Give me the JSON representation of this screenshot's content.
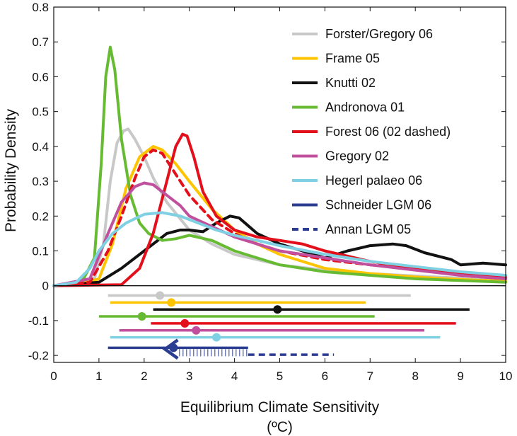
{
  "chart_data": {
    "type": "line",
    "title": "",
    "xlabel": "Equilibrium Climate Sensitivity",
    "xlabel_unit": "(ºC)",
    "ylabel": "Probability Density",
    "xlim": [
      0,
      10
    ],
    "ylim": [
      -0.22,
      0.8
    ],
    "xticks": [
      "0",
      "1",
      "2",
      "3",
      "4",
      "5",
      "6",
      "7",
      "8",
      "9",
      "10"
    ],
    "yticks": [
      "-0.2",
      "-0.1",
      "0",
      "0.1",
      "0.2",
      "0.3",
      "0.4",
      "0.5",
      "0.6",
      "0.7",
      "0.8"
    ],
    "grid": false,
    "legend_position": "top-right",
    "series": [
      {
        "name": "Forster/Gregory 06",
        "color": "#c8c8c8",
        "dash": false,
        "x": [
          0,
          0.5,
          0.9,
          1.1,
          1.25,
          1.4,
          1.55,
          1.65,
          1.8,
          2.0,
          2.2,
          2.5,
          3.0,
          3.5,
          4.0,
          5.0,
          6.0,
          7.0,
          8.0,
          9.0,
          10.0
        ],
        "y": [
          0.0,
          0.002,
          0.02,
          0.12,
          0.3,
          0.41,
          0.445,
          0.45,
          0.42,
          0.37,
          0.31,
          0.24,
          0.16,
          0.12,
          0.09,
          0.06,
          0.045,
          0.035,
          0.028,
          0.022,
          0.018
        ],
        "range": [
          1.2,
          7.9
        ],
        "mode": 2.35,
        "range_y": -0.028
      },
      {
        "name": "Frame 05",
        "color": "#ffc400",
        "dash": false,
        "x": [
          0,
          0.5,
          1.0,
          1.3,
          1.6,
          1.9,
          2.2,
          2.4,
          2.7,
          3.0,
          3.5,
          4.0,
          4.5,
          5.0,
          6.0,
          7.0,
          8.0,
          9.0,
          10.0
        ],
        "y": [
          0.0,
          0.002,
          0.02,
          0.12,
          0.28,
          0.37,
          0.4,
          0.39,
          0.35,
          0.3,
          0.22,
          0.16,
          0.12,
          0.09,
          0.05,
          0.035,
          0.025,
          0.018,
          0.013
        ],
        "range": [
          1.25,
          6.9
        ],
        "mode": 2.6,
        "range_y": -0.048
      },
      {
        "name": "Knutti 02",
        "color": "#111111",
        "dash": false,
        "x": [
          0,
          1.0,
          1.5,
          2.0,
          2.5,
          2.8,
          3.0,
          3.3,
          3.6,
          3.9,
          4.1,
          4.5,
          5.0,
          5.5,
          6.0,
          6.5,
          7.0,
          7.5,
          7.8,
          8.2,
          8.8,
          9.0,
          9.5,
          10.0
        ],
        "y": [
          0.0,
          0.01,
          0.05,
          0.1,
          0.15,
          0.16,
          0.16,
          0.155,
          0.18,
          0.2,
          0.195,
          0.15,
          0.12,
          0.1,
          0.08,
          0.1,
          0.115,
          0.12,
          0.115,
          0.095,
          0.075,
          0.06,
          0.065,
          0.06
        ],
        "range": [
          2.2,
          9.2
        ],
        "mode": 4.95,
        "range_y": -0.068
      },
      {
        "name": "Andronova 01",
        "color": "#66bb33",
        "dash": false,
        "x": [
          0,
          0.6,
          0.9,
          1.05,
          1.15,
          1.25,
          1.35,
          1.5,
          1.7,
          1.9,
          2.1,
          2.4,
          2.7,
          3.0,
          3.5,
          4.0,
          4.5,
          5.0,
          6.0,
          7.0,
          8.0,
          9.0,
          10.0
        ],
        "y": [
          0.0,
          0.005,
          0.08,
          0.35,
          0.6,
          0.685,
          0.62,
          0.42,
          0.26,
          0.18,
          0.15,
          0.13,
          0.135,
          0.145,
          0.13,
          0.1,
          0.08,
          0.06,
          0.04,
          0.03,
          0.02,
          0.015,
          0.01
        ],
        "range": [
          1.0,
          7.1
        ],
        "mode": 1.95,
        "range_y": -0.088
      },
      {
        "name": "Forest 06 (02 dashed)",
        "color": "#e3101c",
        "dash": false,
        "x": [
          0,
          1.5,
          1.9,
          2.2,
          2.5,
          2.7,
          2.85,
          2.95,
          3.1,
          3.3,
          3.6,
          4.0,
          4.5,
          5.0,
          5.5,
          6.0,
          7.0,
          8.0,
          9.0,
          10.0
        ],
        "y": [
          0.0,
          0.003,
          0.05,
          0.15,
          0.3,
          0.4,
          0.435,
          0.43,
          0.37,
          0.27,
          0.2,
          0.16,
          0.14,
          0.13,
          0.12,
          0.1,
          0.07,
          0.05,
          0.035,
          0.025
        ],
        "range": [
          2.15,
          8.9
        ],
        "mode": 2.9,
        "range_y": -0.108
      },
      {
        "name": "Forest 02 (dashed)",
        "legend": false,
        "color": "#e3101c",
        "dash": true,
        "x": [
          0,
          0.8,
          1.2,
          1.5,
          1.8,
          2.0,
          2.2,
          2.4,
          2.7,
          3.0,
          3.5,
          4.0,
          4.5,
          5.0,
          6.0,
          7.0,
          8.0,
          9.0,
          10.0
        ],
        "y": [
          0.0,
          0.01,
          0.1,
          0.2,
          0.31,
          0.37,
          0.39,
          0.38,
          0.32,
          0.26,
          0.19,
          0.15,
          0.12,
          0.1,
          0.075,
          0.06,
          0.05,
          0.03,
          0.02
        ]
      },
      {
        "name": "Gregory 02",
        "color": "#c0509e",
        "dash": false,
        "x": [
          0,
          0.8,
          1.2,
          1.5,
          1.8,
          2.0,
          2.2,
          2.5,
          2.8,
          3.0,
          3.5,
          4.0,
          4.5,
          5.0,
          5.5,
          6.0,
          7.0,
          8.0,
          9.0,
          10.0
        ],
        "y": [
          0.0,
          0.02,
          0.15,
          0.24,
          0.285,
          0.295,
          0.29,
          0.26,
          0.23,
          0.2,
          0.17,
          0.14,
          0.12,
          0.1,
          0.09,
          0.08,
          0.06,
          0.045,
          0.03,
          0.02
        ],
        "range": [
          1.45,
          8.2
        ],
        "mode": 3.15,
        "range_y": -0.128
      },
      {
        "name": "Hegerl palaeo 06",
        "color": "#7ed0e2",
        "dash": false,
        "x": [
          0,
          0.5,
          0.8,
          1.0,
          1.3,
          1.6,
          2.0,
          2.4,
          2.8,
          3.2,
          3.6,
          4.0,
          4.5,
          5.0,
          6.0,
          7.0,
          8.0,
          9.0,
          10.0
        ],
        "y": [
          0.0,
          0.01,
          0.05,
          0.1,
          0.15,
          0.18,
          0.205,
          0.21,
          0.2,
          0.18,
          0.16,
          0.145,
          0.13,
          0.115,
          0.09,
          0.07,
          0.055,
          0.04,
          0.03
        ],
        "range": [
          1.25,
          8.55
        ],
        "mode": 3.6,
        "range_y": -0.148
      },
      {
        "name": "Schneider LGM 06",
        "color": "#2a3d91",
        "dash": false,
        "range": [
          1.2,
          4.3
        ],
        "mode": 2.65,
        "range_y": -0.178
      },
      {
        "name": "Annan LGM 05",
        "color": "#2a3d91",
        "dash": true,
        "range": [
          4.3,
          6.2
        ],
        "range_y": -0.198
      }
    ]
  }
}
